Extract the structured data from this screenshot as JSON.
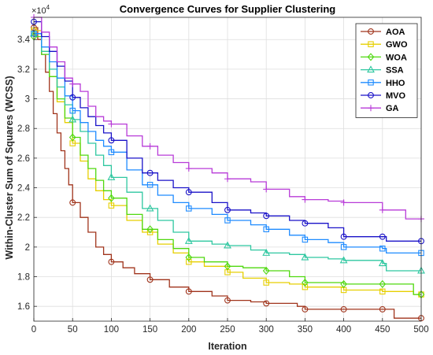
{
  "chart_data": {
    "type": "line",
    "title": "Convergence Curves for Supplier Clustering",
    "xlabel": "Iteration",
    "ylabel": "Within-Cluster Sum of Squares (WCSS)",
    "y_exponent": "×10^4",
    "y_exponent_base": "×10",
    "y_exponent_power": "4",
    "xlim": [
      0,
      500
    ],
    "ylim": [
      1.5,
      3.55
    ],
    "xticks": [
      0,
      50,
      100,
      150,
      200,
      250,
      300,
      350,
      400,
      450,
      500
    ],
    "yticks": [
      1.6,
      1.8,
      2.0,
      2.2,
      2.4,
      2.6,
      2.8,
      3.0,
      3.2,
      3.4
    ],
    "ytick_labels": [
      "1.6",
      "1.8",
      "2",
      "2.2",
      "2.4",
      "2.6",
      "2.8",
      "3",
      "3.2",
      "3.4"
    ],
    "grid": true,
    "legend_position": "top-right",
    "series": [
      {
        "name": "AOA",
        "color": "#a0341c",
        "marker": "circle",
        "x": [
          0,
          5,
          10,
          15,
          20,
          25,
          30,
          35,
          40,
          45,
          50,
          60,
          70,
          80,
          90,
          100,
          115,
          130,
          150,
          175,
          200,
          230,
          250,
          280,
          300,
          340,
          350,
          400,
          460,
          465,
          500
        ],
        "y": [
          3.48,
          3.4,
          3.3,
          3.18,
          3.05,
          2.9,
          2.77,
          2.65,
          2.53,
          2.42,
          2.3,
          2.2,
          2.1,
          2.0,
          1.95,
          1.9,
          1.86,
          1.82,
          1.78,
          1.73,
          1.7,
          1.67,
          1.64,
          1.63,
          1.62,
          1.6,
          1.58,
          1.58,
          1.58,
          1.52,
          1.52
        ]
      },
      {
        "name": "GWO",
        "color": "#e6cf00",
        "marker": "square",
        "x": [
          0,
          10,
          20,
          30,
          40,
          50,
          60,
          70,
          80,
          90,
          100,
          120,
          140,
          160,
          180,
          200,
          220,
          250,
          270,
          300,
          330,
          350,
          400,
          450,
          490,
          500
        ],
        "y": [
          3.46,
          3.32,
          3.15,
          2.98,
          2.84,
          2.7,
          2.58,
          2.46,
          2.38,
          2.32,
          2.28,
          2.18,
          2.1,
          2.02,
          1.96,
          1.9,
          1.87,
          1.83,
          1.79,
          1.76,
          1.75,
          1.73,
          1.71,
          1.7,
          1.68,
          1.68
        ]
      },
      {
        "name": "WOA",
        "color": "#4fd80f",
        "marker": "diamond",
        "x": [
          0,
          10,
          20,
          30,
          40,
          50,
          60,
          70,
          80,
          90,
          100,
          120,
          140,
          160,
          180,
          200,
          220,
          250,
          270,
          300,
          330,
          350,
          400,
          450,
          490,
          500
        ],
        "y": [
          3.42,
          3.3,
          3.15,
          3.0,
          2.87,
          2.74,
          2.62,
          2.53,
          2.45,
          2.38,
          2.33,
          2.22,
          2.12,
          2.05,
          1.99,
          1.93,
          1.9,
          1.87,
          1.86,
          1.84,
          1.8,
          1.76,
          1.75,
          1.75,
          1.68,
          1.68
        ]
      },
      {
        "name": "SSA",
        "color": "#2ec7a0",
        "marker": "triangle",
        "x": [
          0,
          10,
          20,
          30,
          40,
          50,
          60,
          70,
          80,
          90,
          100,
          120,
          140,
          160,
          180,
          200,
          230,
          250,
          280,
          300,
          330,
          350,
          380,
          400,
          450,
          455,
          500
        ],
        "y": [
          3.44,
          3.32,
          3.2,
          3.08,
          2.96,
          2.86,
          2.78,
          2.7,
          2.62,
          2.55,
          2.47,
          2.37,
          2.26,
          2.18,
          2.1,
          2.04,
          2.02,
          2.01,
          1.98,
          1.96,
          1.95,
          1.93,
          1.92,
          1.91,
          1.89,
          1.84,
          1.84
        ]
      },
      {
        "name": "HHO",
        "color": "#1e8bff",
        "marker": "square",
        "x": [
          0,
          10,
          20,
          30,
          40,
          50,
          60,
          70,
          80,
          90,
          100,
          120,
          140,
          160,
          180,
          200,
          230,
          250,
          280,
          300,
          330,
          350,
          380,
          400,
          450,
          455,
          500
        ],
        "y": [
          3.44,
          3.35,
          3.25,
          3.14,
          3.02,
          2.92,
          2.84,
          2.78,
          2.72,
          2.68,
          2.64,
          2.52,
          2.42,
          2.35,
          2.3,
          2.26,
          2.22,
          2.18,
          2.15,
          2.12,
          2.08,
          2.05,
          2.03,
          2.0,
          1.99,
          1.96,
          1.96
        ]
      },
      {
        "name": "MVO",
        "color": "#1a12c8",
        "marker": "circle",
        "x": [
          0,
          10,
          20,
          30,
          40,
          50,
          60,
          70,
          80,
          90,
          100,
          120,
          140,
          160,
          180,
          200,
          230,
          250,
          280,
          300,
          330,
          350,
          380,
          400,
          450,
          455,
          500
        ],
        "y": [
          3.52,
          3.42,
          3.32,
          3.22,
          3.12,
          3.01,
          2.94,
          2.88,
          2.82,
          2.77,
          2.72,
          2.6,
          2.5,
          2.45,
          2.4,
          2.37,
          2.3,
          2.25,
          2.23,
          2.21,
          2.18,
          2.16,
          2.13,
          2.07,
          2.07,
          2.04,
          2.04
        ]
      },
      {
        "name": "GA",
        "color": "#b83bd8",
        "marker": "plus",
        "x": [
          0,
          10,
          20,
          30,
          40,
          50,
          60,
          70,
          80,
          90,
          100,
          120,
          140,
          160,
          180,
          200,
          230,
          250,
          280,
          300,
          330,
          350,
          380,
          400,
          450,
          480,
          500
        ],
        "y": [
          3.55,
          3.45,
          3.35,
          3.25,
          3.14,
          3.1,
          3.05,
          2.95,
          2.88,
          2.85,
          2.83,
          2.75,
          2.68,
          2.62,
          2.57,
          2.53,
          2.5,
          2.46,
          2.44,
          2.39,
          2.34,
          2.32,
          2.31,
          2.3,
          2.25,
          2.19,
          2.19
        ]
      }
    ]
  }
}
